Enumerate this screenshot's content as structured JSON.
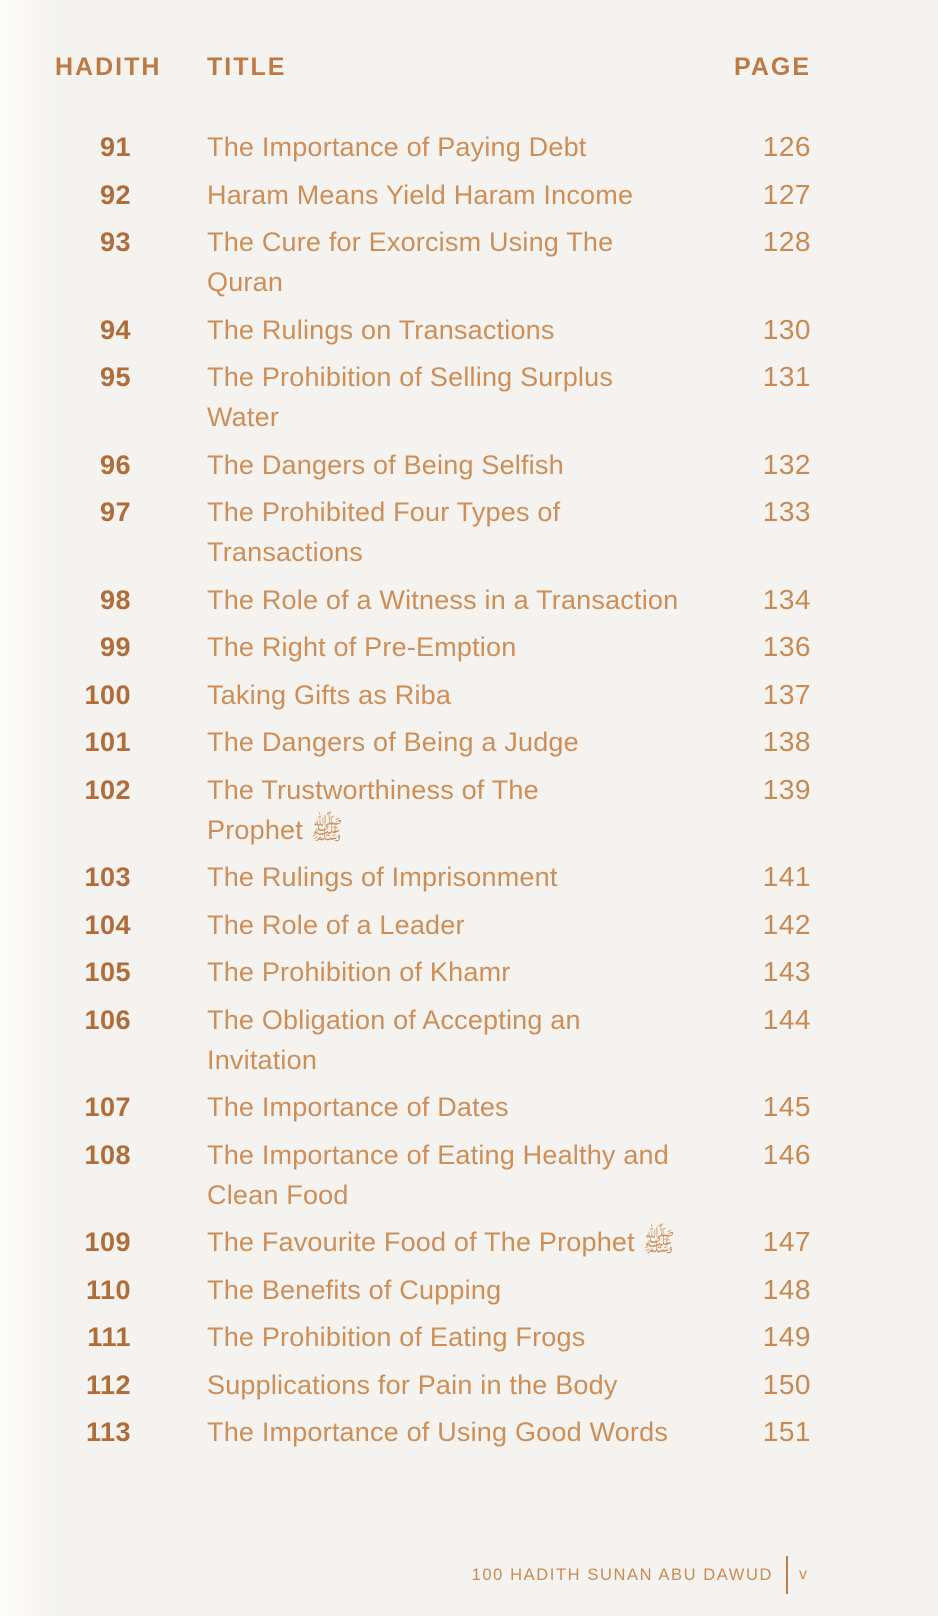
{
  "palette": {
    "background": "#f4f3f0",
    "header_text": "#bd7a45",
    "number_text": "#b06d3a",
    "title_text": "#ce8e57",
    "page_text": "#c78a52",
    "footer_text": "#ca8a52"
  },
  "header": {
    "hadith": "HADITH",
    "title": "TITLE",
    "page": "PAGE"
  },
  "rows": [
    {
      "hadith": "91",
      "title": "The Importance of Paying Debt",
      "page": "126"
    },
    {
      "hadith": "92",
      "title": "Haram Means Yield Haram Income",
      "page": "127"
    },
    {
      "hadith": "93",
      "title": "The Cure for Exorcism Using The\nQuran",
      "page": "128"
    },
    {
      "hadith": "94",
      "title": "The Rulings on Transactions",
      "page": "130"
    },
    {
      "hadith": "95",
      "title": "The Prohibition of Selling Surplus\nWater",
      "page": "131"
    },
    {
      "hadith": "96",
      "title": "The Dangers of Being Selfish",
      "page": "132"
    },
    {
      "hadith": "97",
      "title": "The Prohibited Four Types of\nTransactions",
      "page": "133"
    },
    {
      "hadith": "98",
      "title": "The Role of a Witness in a Transaction",
      "page": "134"
    },
    {
      "hadith": "99",
      "title": "The Right of Pre-Emption",
      "page": "136"
    },
    {
      "hadith": "100",
      "title": "Taking Gifts as Riba",
      "page": "137"
    },
    {
      "hadith": "101",
      "title": "The Dangers of Being a Judge",
      "page": "138"
    },
    {
      "hadith": "102",
      "title": "The Trustworthiness of The\nProphet ﷺ",
      "page": "139"
    },
    {
      "hadith": "103",
      "title": "The Rulings of Imprisonment",
      "page": "141"
    },
    {
      "hadith": "104",
      "title": "The Role of a Leader",
      "page": "142"
    },
    {
      "hadith": "105",
      "title": "The Prohibition of Khamr",
      "page": "143"
    },
    {
      "hadith": "106",
      "title": "The Obligation of Accepting an\nInvitation",
      "page": "144"
    },
    {
      "hadith": "107",
      "title": "The Importance of Dates",
      "page": "145"
    },
    {
      "hadith": "108",
      "title": "The Importance of Eating Healthy and\nClean Food",
      "page": "146"
    },
    {
      "hadith": "109",
      "title": "The Favourite Food of The Prophet ﷺ",
      "page": "147"
    },
    {
      "hadith": "110",
      "title": "The Benefits of Cupping",
      "page": "148"
    },
    {
      "hadith": "111",
      "title": "The Prohibition of Eating Frogs",
      "page": "149"
    },
    {
      "hadith": "112",
      "title": "Supplications for Pain in the Body",
      "page": "150"
    },
    {
      "hadith": "113",
      "title": "The Importance of Using Good Words",
      "page": "151"
    }
  ],
  "footer": {
    "book_title": "100 HADITH SUNAN ABU DAWUD",
    "page_number": "v"
  }
}
